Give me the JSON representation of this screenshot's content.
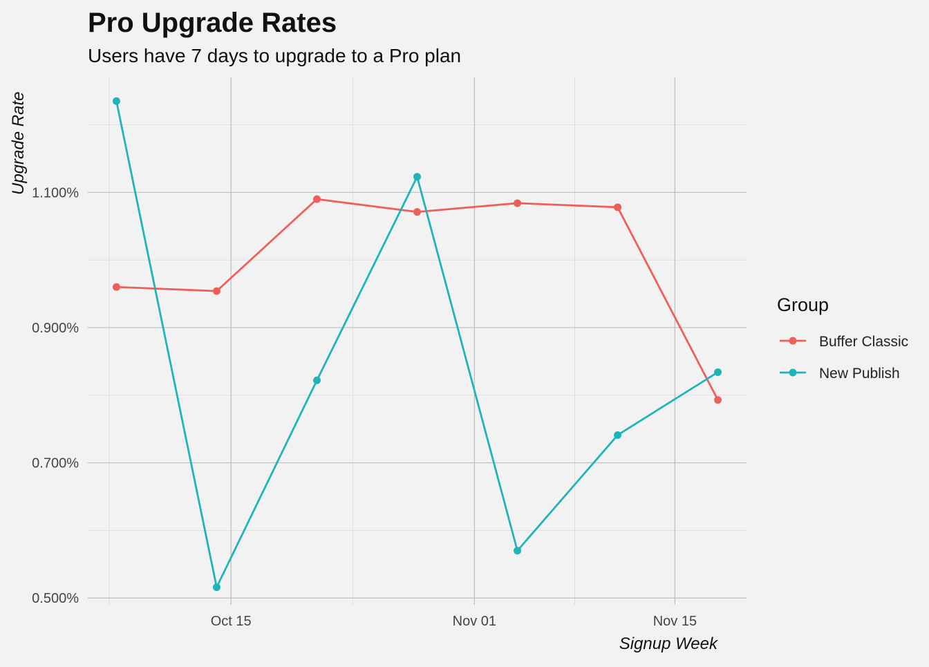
{
  "chart_data": {
    "type": "line",
    "title": "Pro Upgrade Rates",
    "subtitle": "Users have 7 days to upgrade to a Pro plan",
    "xlabel": "Signup Week",
    "ylabel": "Upgrade Rate",
    "x_ticks": [
      {
        "date": "2017-10-15",
        "label": "Oct 15"
      },
      {
        "date": "2017-11-01",
        "label": "Nov 01"
      },
      {
        "date": "2017-11-15",
        "label": "Nov 15"
      }
    ],
    "y_ticks": [
      {
        "value": 0.005,
        "label": "0.500%"
      },
      {
        "value": 0.007,
        "label": "0.700%"
      },
      {
        "value": 0.009,
        "label": "0.900%"
      },
      {
        "value": 0.011,
        "label": "1.100%"
      }
    ],
    "xlim": [
      "2017-10-05",
      "2017-11-20"
    ],
    "ylim": [
      0.0049,
      0.0127
    ],
    "x": [
      "2017-10-07",
      "2017-10-14",
      "2017-10-21",
      "2017-10-28",
      "2017-11-04",
      "2017-11-11",
      "2017-11-18"
    ],
    "series": [
      {
        "name": "Buffer Classic",
        "color": "#ef5f5a",
        "values": [
          0.0096,
          0.00954,
          0.0109,
          0.01071,
          0.01084,
          0.01078,
          0.00793
        ]
      },
      {
        "name": "New Publish",
        "color": "#1fb5b8",
        "values": [
          0.01235,
          0.00516,
          0.00822,
          0.01123,
          0.0057,
          0.00741,
          0.00834
        ]
      }
    ],
    "legend": {
      "title": "Group",
      "position": "right"
    },
    "grid": true
  }
}
